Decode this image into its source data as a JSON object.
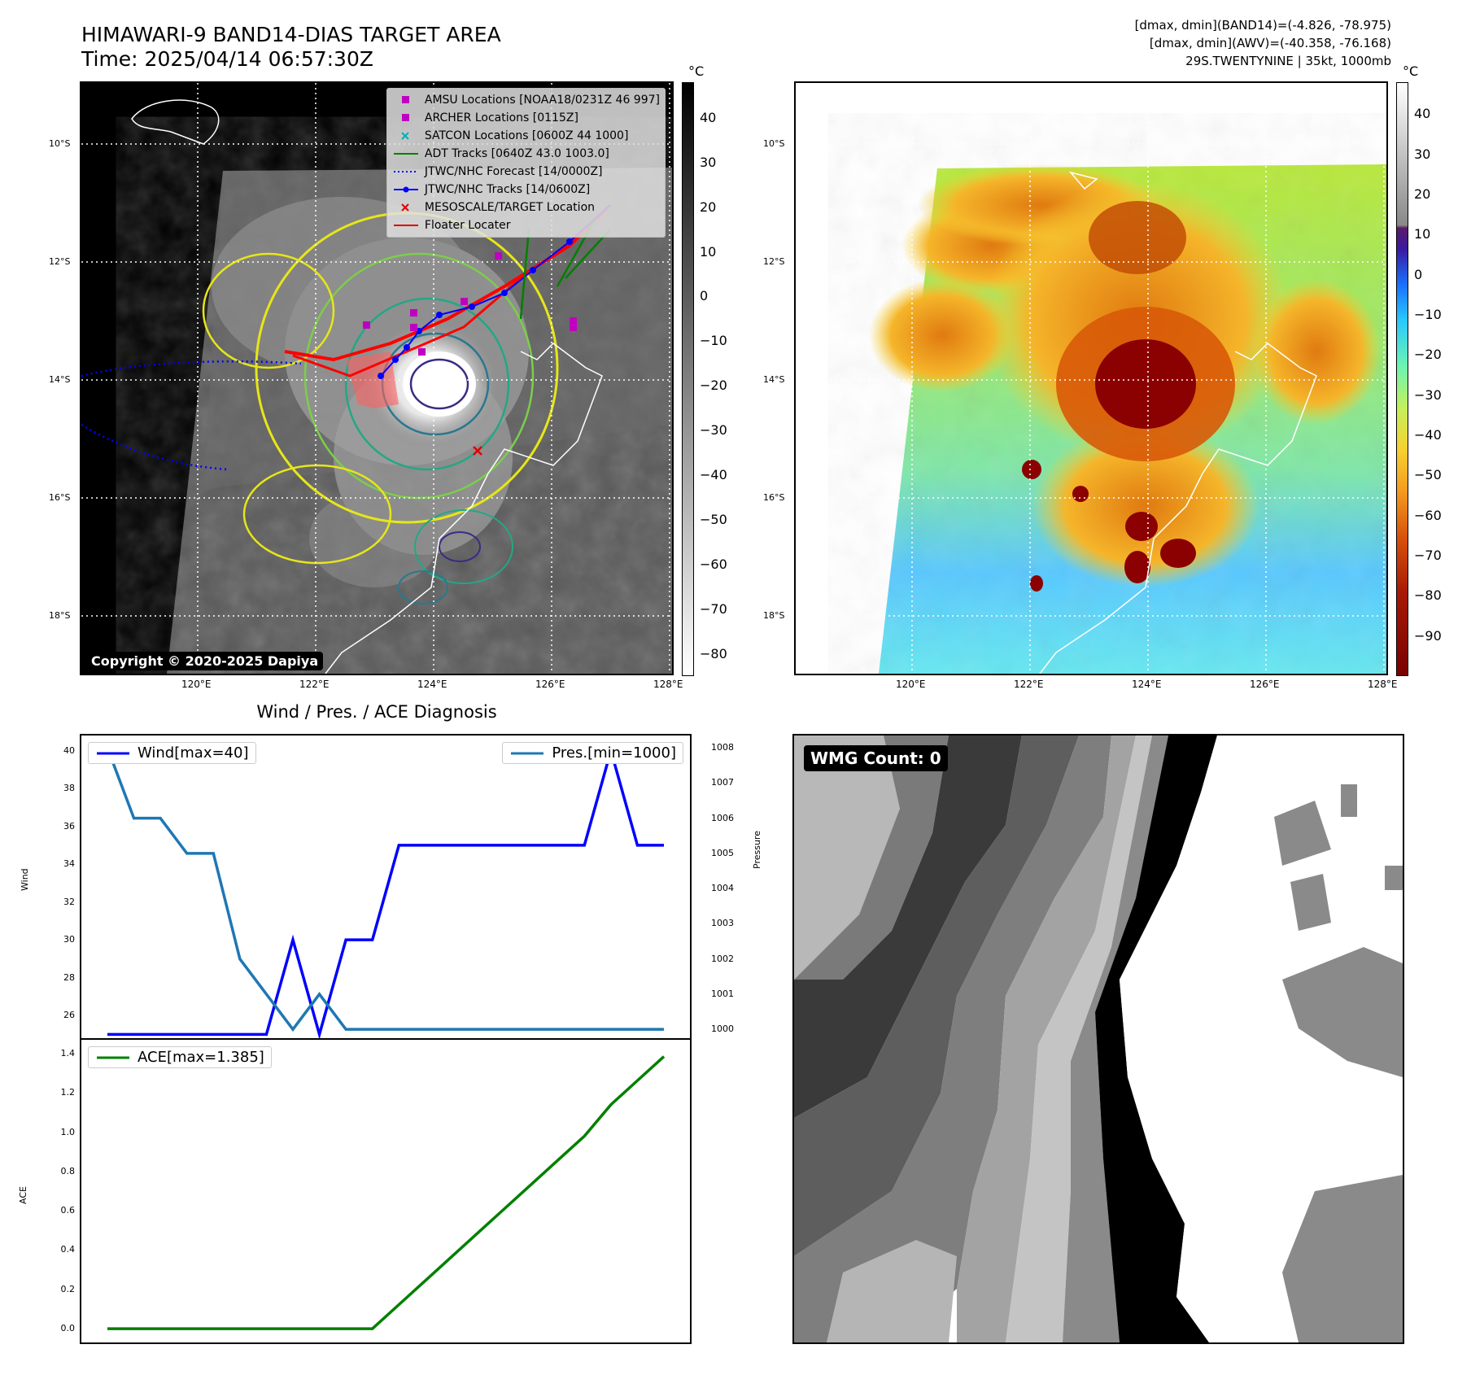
{
  "header": {
    "title_line1": "HIMAWARI-9 BAND14-DIAS TARGET AREA",
    "title_line2": "Time: 2025/04/14 06:57:30Z",
    "info_line1": "[dmax, dmin](BAND14)=(-4.826, -78.975)",
    "info_line2": "[dmax, dmin](AWV)=(-40.358, -76.168)",
    "info_line3": "29S.TWENTYNINE | 35kt, 1000mb"
  },
  "map_axes": {
    "lat_labels": [
      "10°S",
      "12°S",
      "14°S",
      "16°S",
      "18°S"
    ],
    "lon_labels": [
      "120°E",
      "122°E",
      "124°E",
      "126°E",
      "128°E"
    ],
    "lon_range": [
      118.0,
      128.0
    ],
    "lat_range": [
      -18.97,
      -8.97
    ]
  },
  "left_map": {
    "copyright": "Copyright © 2020-2025 Dapiya",
    "legend": [
      {
        "label": "AMSU Locations [NOAA18/0231Z 46 997]",
        "marker": "square",
        "color": "#c000c0"
      },
      {
        "label": "ARCHER Locations [0115Z]",
        "marker": "square",
        "color": "#c000c0"
      },
      {
        "label": "SATCON Locations [0600Z 44 1000]",
        "marker": "x",
        "color": "#00b0b0"
      },
      {
        "label": "ADT Tracks [0640Z 43.0 1003.0]",
        "marker": "line",
        "color": "#008000"
      },
      {
        "label": "JTWC/NHC Forecast [14/0000Z]",
        "marker": "dotted",
        "color": "#0000ff"
      },
      {
        "label": "JTWC/NHC Tracks [14/0600Z]",
        "marker": "line-dot",
        "color": "#0000ff"
      },
      {
        "label": "MESOSCALE/TARGET Location",
        "marker": "x",
        "color": "#e00000"
      },
      {
        "label": "Floater Locater",
        "marker": "line",
        "color": "#e00000"
      }
    ],
    "colorbar": {
      "unit": "°C",
      "ticks": [
        "40",
        "30",
        "20",
        "10",
        "0",
        "−10",
        "−20",
        "−30",
        "−40",
        "−50",
        "−60",
        "−70",
        "−80"
      ],
      "range": [
        48,
        -85
      ],
      "tick_values": [
        40,
        30,
        20,
        10,
        0,
        -10,
        -20,
        -30,
        -40,
        -50,
        -60,
        -70,
        -80
      ]
    }
  },
  "right_map": {
    "colorbar": {
      "unit": "°C",
      "ticks": [
        "40",
        "30",
        "20",
        "10",
        "0",
        "−10",
        "−20",
        "−30",
        "−40",
        "−50",
        "−60",
        "−70",
        "−80",
        "−90"
      ],
      "range": [
        48,
        -100
      ],
      "tick_values": [
        40,
        30,
        20,
        10,
        0,
        -10,
        -20,
        -30,
        -40,
        -50,
        -60,
        -70,
        -80,
        -90
      ]
    }
  },
  "diagnosis": {
    "title": "Wind / Pres. / ACE Diagnosis",
    "wind_ylabel": "Wind",
    "pres_ylabel": "Pressure",
    "ace_ylabel": "ACE",
    "wind_legend": "Wind[max=40]",
    "pres_legend": "Pres.[min=1000]",
    "ace_legend": "ACE[max=1.385]",
    "wind_ticks": [
      "40",
      "38",
      "36",
      "34",
      "32",
      "30",
      "28",
      "26"
    ],
    "pres_ticks": [
      "1008",
      "1007",
      "1006",
      "1005",
      "1004",
      "1003",
      "1002",
      "1001",
      "1000"
    ],
    "ace_ticks": [
      "1.4",
      "1.2",
      "1.0",
      "0.8",
      "0.6",
      "0.4",
      "0.2",
      "0.0"
    ]
  },
  "chart_data": [
    {
      "type": "line",
      "title": "Wind / Pres. / ACE Diagnosis",
      "ylabel": "Wind",
      "ylim": [
        24.8,
        40.8
      ],
      "x": [
        0,
        1,
        2,
        3,
        4,
        5,
        6,
        7,
        8,
        9,
        10,
        11,
        12,
        13,
        14,
        15,
        16,
        17,
        18,
        19,
        20,
        21
      ],
      "series": [
        {
          "name": "Wind[max=40]",
          "color": "#0000ff",
          "values": [
            25,
            25,
            25,
            25,
            25,
            25,
            25,
            30,
            25,
            30,
            30,
            35,
            35,
            35,
            35,
            35,
            35,
            35,
            35,
            40,
            35,
            35
          ]
        }
      ]
    },
    {
      "type": "line",
      "ylabel": "Pressure",
      "ylim": [
        999.75,
        1008.35
      ],
      "x": [
        0,
        1,
        2,
        3,
        4,
        5,
        6,
        7,
        8,
        9,
        10,
        11,
        12,
        13,
        14,
        15,
        16,
        17,
        18,
        19,
        20,
        21
      ],
      "series": [
        {
          "name": "Pres.[min=1000]",
          "color": "#1f77b4",
          "values": [
            1008,
            1006,
            1006,
            1005,
            1005,
            1002,
            1001,
            1000,
            1001,
            1000,
            1000,
            1000,
            1000,
            1000,
            1000,
            1000,
            1000,
            1000,
            1000,
            1000,
            1000,
            1000
          ]
        }
      ]
    },
    {
      "type": "line",
      "ylabel": "ACE",
      "ylim": [
        -0.07,
        1.47
      ],
      "x": [
        0,
        1,
        2,
        3,
        4,
        5,
        6,
        7,
        8,
        9,
        10,
        11,
        12,
        13,
        14,
        15,
        16,
        17,
        18,
        19,
        20,
        21
      ],
      "series": [
        {
          "name": "ACE[max=1.385]",
          "color": "#008000",
          "values": [
            0,
            0,
            0,
            0,
            0,
            0,
            0,
            0,
            0,
            0,
            0,
            0.1225,
            0.245,
            0.3675,
            0.49,
            0.6125,
            0.735,
            0.8575,
            0.98,
            1.14,
            1.2625,
            1.385
          ]
        }
      ]
    }
  ],
  "wmg_panel": {
    "count_label": "WMG Count: 0"
  }
}
